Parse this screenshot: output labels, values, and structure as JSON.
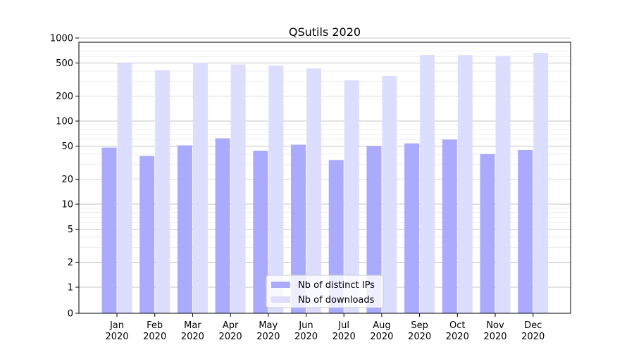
{
  "chart_data": {
    "type": "bar",
    "title": "QSutils 2020",
    "xlabel": "",
    "ylabel": "",
    "yscale": "symlog",
    "ylim": [
      0,
      1300
    ],
    "y_ticks": [
      0,
      1,
      2,
      5,
      10,
      20,
      50,
      100,
      200,
      500,
      1000
    ],
    "y_tick_labels": [
      "0",
      "1",
      "2",
      "5",
      "10",
      "20",
      "50",
      "100",
      "200",
      "500",
      "1000"
    ],
    "grid": true,
    "legend_position": "bottom-center",
    "categories": [
      [
        "Jan",
        "2020"
      ],
      [
        "Feb",
        "2020"
      ],
      [
        "Mar",
        "2020"
      ],
      [
        "Apr",
        "2020"
      ],
      [
        "May",
        "2020"
      ],
      [
        "Jun",
        "2020"
      ],
      [
        "Jul",
        "2020"
      ],
      [
        "Aug",
        "2020"
      ],
      [
        "Sep",
        "2020"
      ],
      [
        "Oct",
        "2020"
      ],
      [
        "Nov",
        "2020"
      ],
      [
        "Dec",
        "2020"
      ]
    ],
    "series": [
      {
        "name": "Nb of distinct IPs",
        "color": "#aaaaff",
        "values": [
          48,
          38,
          51,
          62,
          44,
          52,
          34,
          50,
          54,
          60,
          40,
          45
        ]
      },
      {
        "name": "Nb of downloads",
        "color": "#ddddff",
        "values": [
          500,
          410,
          505,
          480,
          465,
          430,
          310,
          350,
          625,
          625,
          610,
          665
        ]
      }
    ]
  }
}
